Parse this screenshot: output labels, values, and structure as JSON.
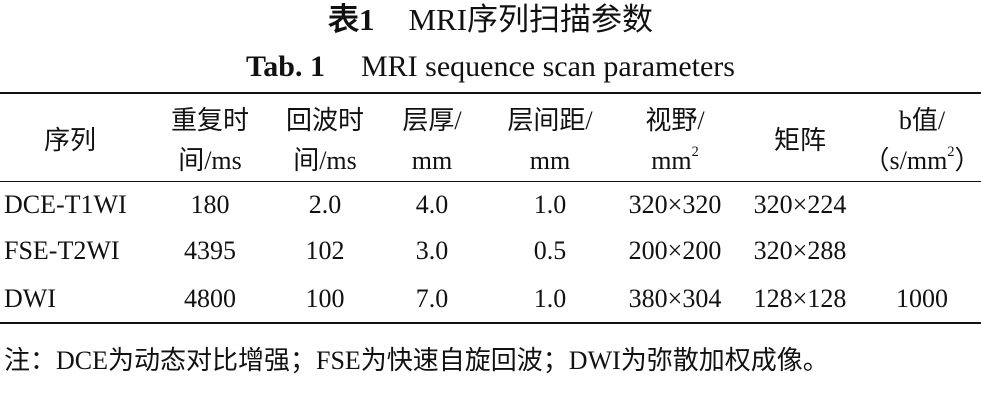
{
  "header": {
    "title_zh_label": "表1",
    "title_zh": "MRI序列扫描参数",
    "title_en_label": "Tab. 1",
    "title_en": "MRI sequence scan parameters"
  },
  "table": {
    "columns": [
      [
        [
          {
            "t": "序列"
          }
        ]
      ],
      [
        [
          {
            "t": "重复时"
          }
        ],
        [
          {
            "t": "间/ms"
          }
        ]
      ],
      [
        [
          {
            "t": "回波时"
          }
        ],
        [
          {
            "t": "间/ms"
          }
        ]
      ],
      [
        [
          {
            "t": "层厚/"
          }
        ],
        [
          {
            "t": "mm"
          }
        ]
      ],
      [
        [
          {
            "t": "层间距/"
          }
        ],
        [
          {
            "t": "mm"
          }
        ]
      ],
      [
        [
          {
            "t": "视野/"
          }
        ],
        [
          {
            "t": "mm"
          },
          {
            "t": "2",
            "sup": true
          }
        ]
      ],
      [
        [
          {
            "t": "矩阵"
          }
        ]
      ],
      [
        [
          {
            "t": "b值/"
          }
        ],
        [
          {
            "t": "（s/mm"
          },
          {
            "t": "2",
            "sup": true
          },
          {
            "t": "）"
          }
        ]
      ]
    ],
    "rows": [
      [
        "DCE-T1WI",
        "180",
        "2.0",
        "4.0",
        "1.0",
        "320×320",
        "320×224",
        null
      ],
      [
        "FSE-T2WI",
        "4395",
        "102",
        "3.0",
        "0.5",
        "200×200",
        "320×288",
        null
      ],
      [
        "DWI",
        "4800",
        "100",
        "7.0",
        "1.0",
        "380×304",
        "128×128",
        "1000"
      ]
    ]
  },
  "note": "注：DCE为动态对比增强；FSE为快速自旋回波；DWI为弥散加权成像。"
}
